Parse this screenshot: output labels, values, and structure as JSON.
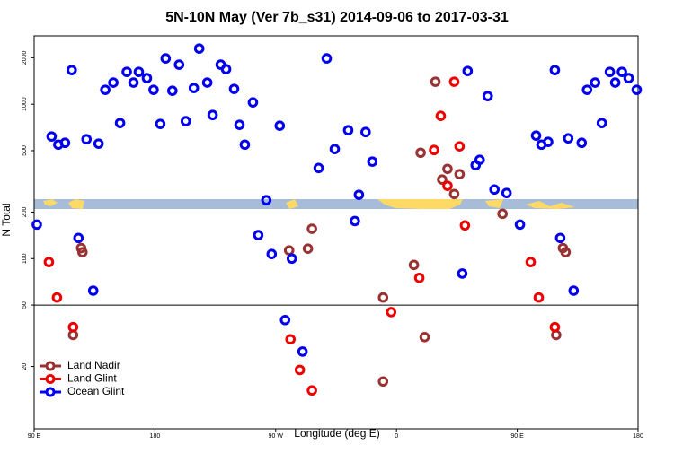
{
  "chart_data": {
    "type": "scatter",
    "title": "5N-10N May (Ver 7b_s31)   2014-09-06 to 2017-03-31",
    "x_label": "Longitude (deg E)",
    "y_label": "N Total",
    "log_y": true,
    "legend": "lower left",
    "hline": 50,
    "xlim": [
      90,
      540
    ],
    "xticks": [
      {
        "value": 90,
        "label": "90 E"
      },
      180,
      {
        "value": 270,
        "label": "90 W"
      },
      {
        "value": 360,
        "label": "0"
      },
      {
        "value": 450,
        "label": "90 E"
      },
      {
        "value": 540,
        "label": "180"
      }
    ],
    "ylim": [
      7.9,
      2770
    ],
    "yticks": [
      20,
      50,
      100,
      200,
      500,
      1000,
      2000
    ],
    "series": [
      {
        "name": "Land Nadir",
        "color": "#993333",
        "x": [
          119,
          125,
          126,
          280,
          294,
          297,
          350,
          350,
          373,
          381,
          378,
          389,
          394,
          398,
          403,
          407,
          439,
          479,
          484,
          486
        ],
        "values": [
          32,
          117,
          110,
          113,
          116,
          156,
          16,
          56,
          91,
          31,
          485,
          1398,
          325,
          381,
          262,
          352,
          195,
          32,
          117,
          110
        ]
      },
      {
        "name": "Land Glint",
        "color": "#ee0000",
        "x": [
          101,
          107,
          119,
          281,
          288,
          297,
          356,
          377,
          388,
          393,
          398,
          403,
          407,
          411,
          460,
          466,
          478
        ],
        "values": [
          95,
          56,
          36,
          30,
          19,
          14,
          45,
          75,
          505,
          840,
          296,
          1398,
          533,
          164,
          95,
          56,
          36
        ]
      },
      {
        "name": "Ocean Glint",
        "color": "#0000ee",
        "x": [
          92,
          103,
          108,
          113,
          118,
          123,
          129,
          134,
          138,
          143,
          149,
          154,
          159,
          164,
          168,
          174,
          179,
          184,
          188,
          193,
          198,
          203,
          209,
          213,
          219,
          223,
          229,
          233,
          239,
          243,
          247,
          253,
          257,
          263,
          267,
          273,
          277,
          282,
          290,
          302,
          308,
          314,
          324,
          329,
          332,
          337,
          342,
          409,
          413,
          419,
          422,
          428,
          433,
          442,
          452,
          464,
          468,
          473,
          478,
          482,
          488,
          492,
          498,
          502,
          508,
          513,
          519,
          523,
          528,
          533,
          539
        ],
        "values": [
          166,
          618,
          547,
          562,
          1663,
          136,
          593,
          62,
          555,
          1239,
          1380,
          755,
          1619,
          1380,
          1619,
          1475,
          1239,
          745,
          1980,
          1222,
          1803,
          776,
          1273,
          2293,
          1380,
          851,
          1803,
          1686,
          1256,
          735,
          547,
          1027,
          142,
          239,
          107,
          725,
          40,
          100,
          25,
          386,
          1980,
          512,
          678,
          175,
          259,
          660,
          425,
          80,
          1641,
          403,
          436,
          1128,
          280,
          266,
          166,
          626,
          547,
          570,
          1663,
          136,
          601,
          62,
          562,
          1239,
          1380,
          755,
          1619,
          1380,
          1619,
          1475,
          1239
        ]
      }
    ]
  }
}
